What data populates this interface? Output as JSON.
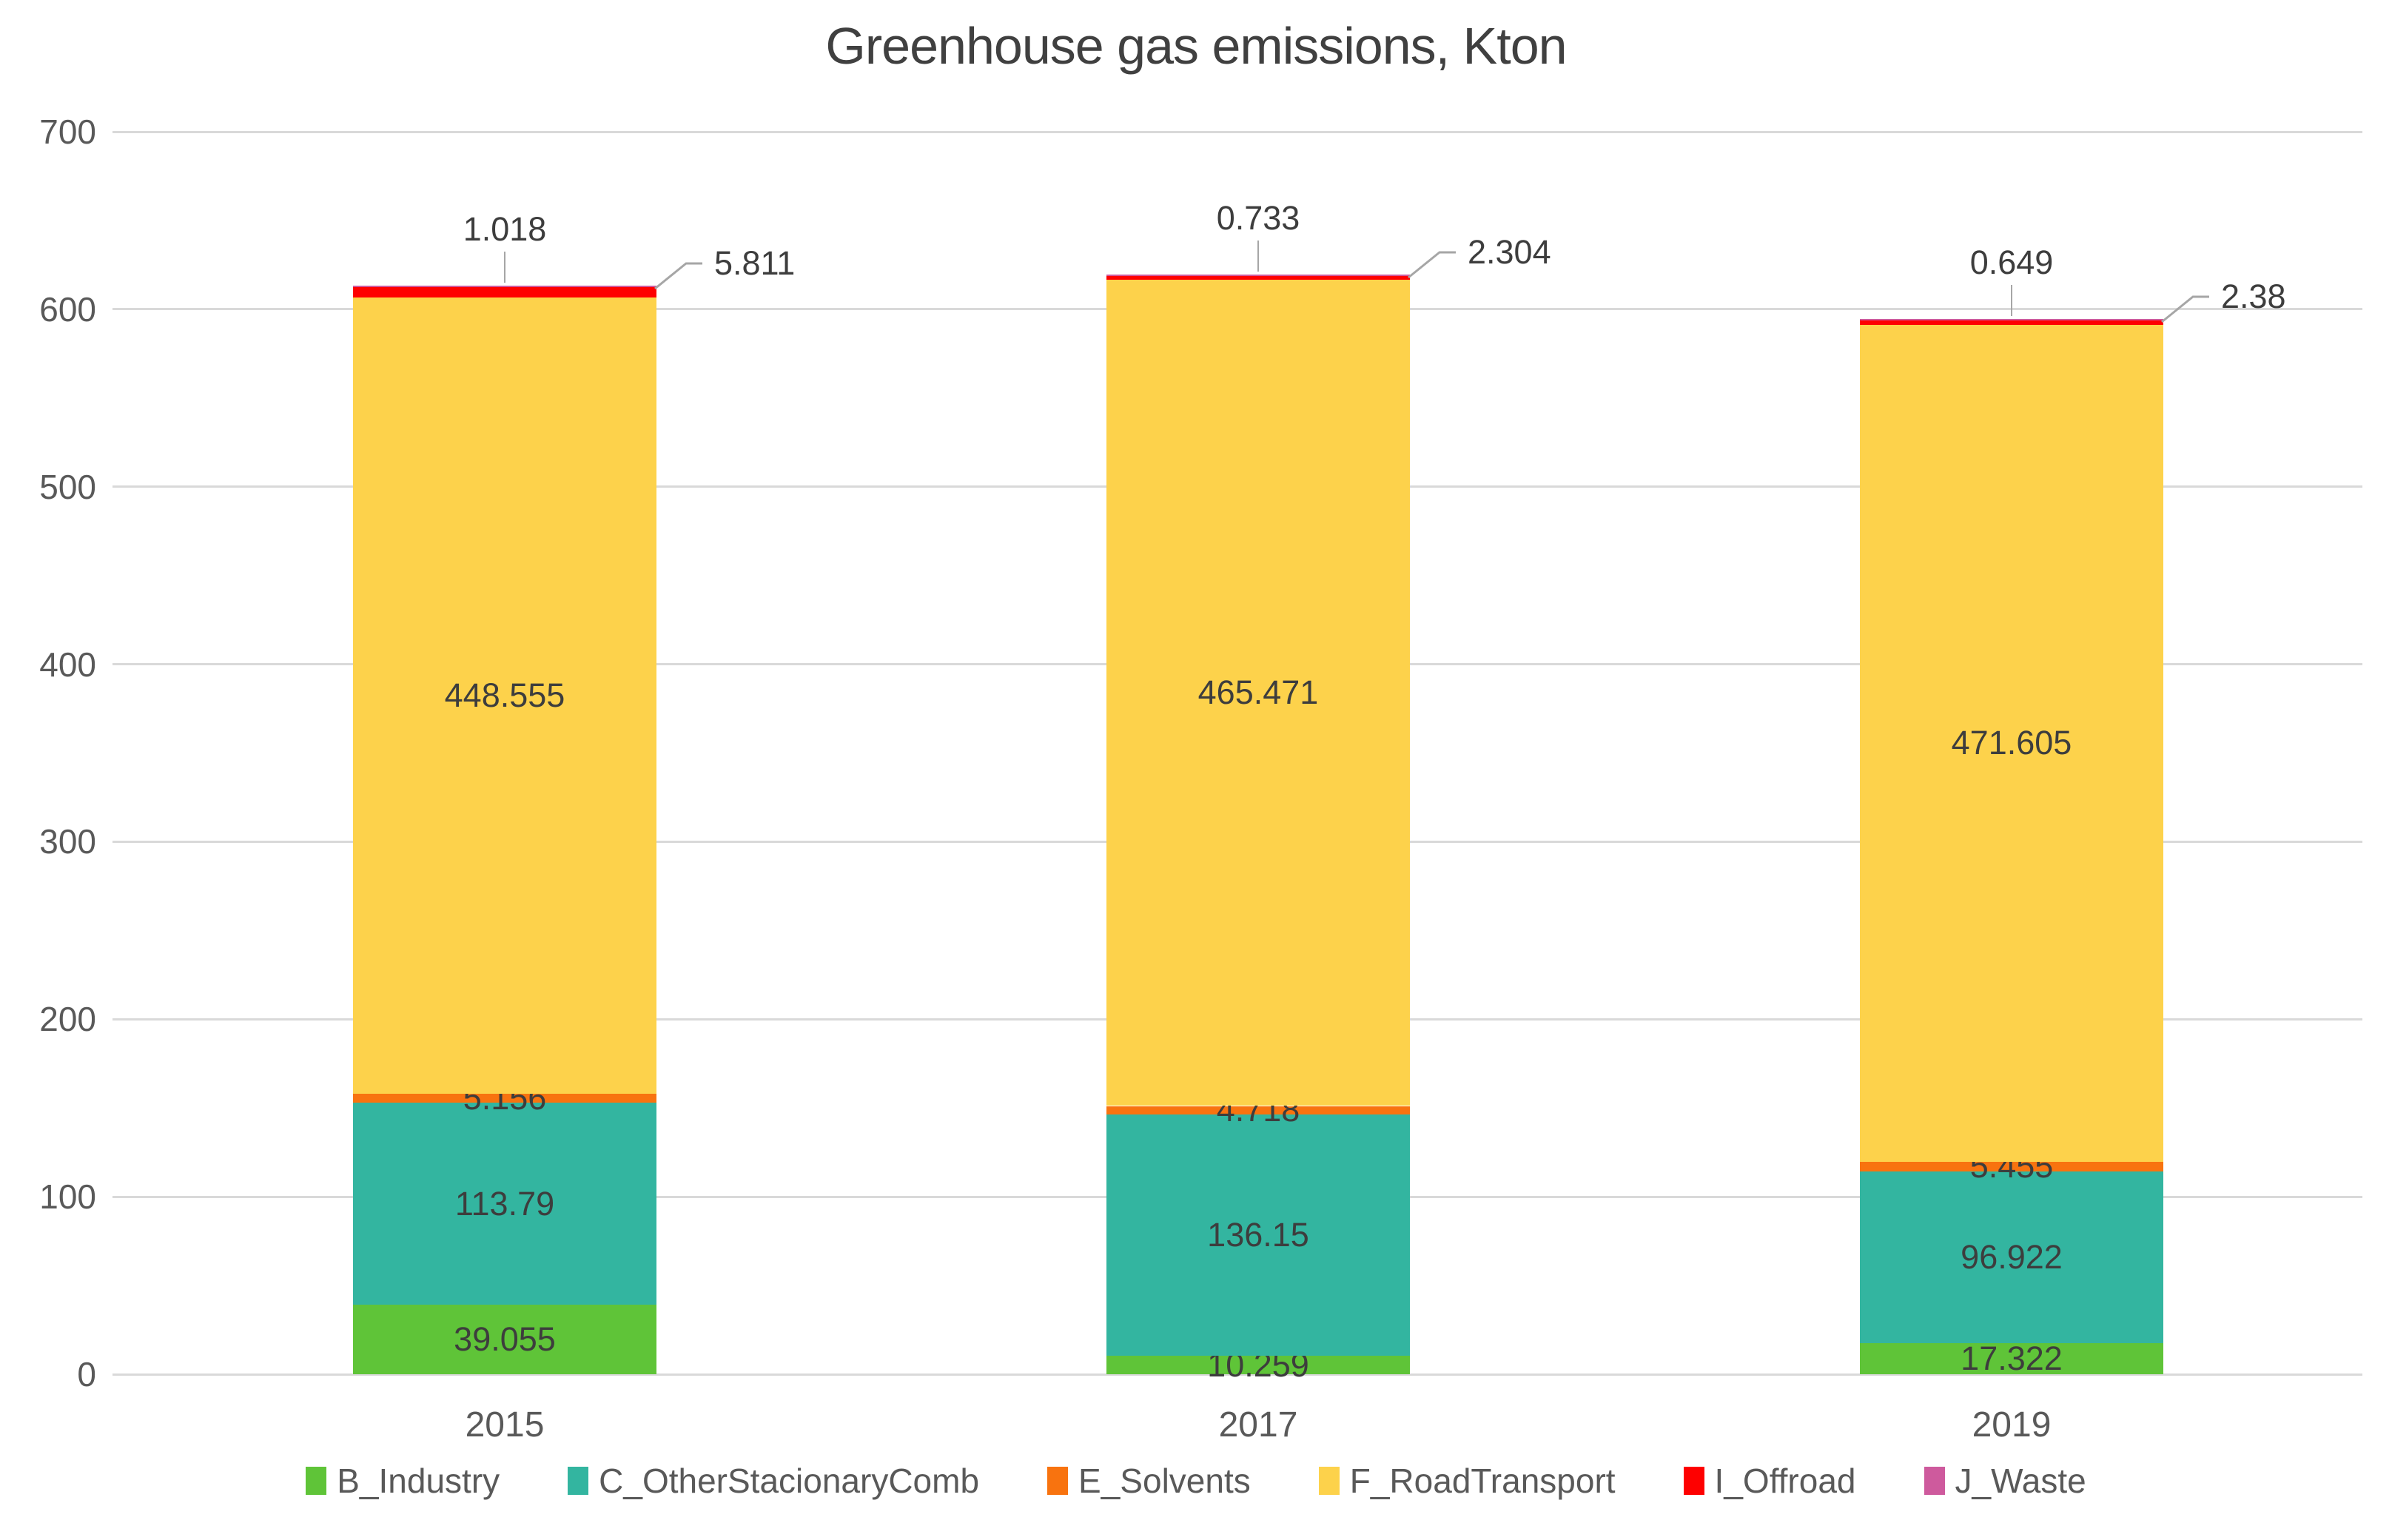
{
  "chart_data": {
    "type": "bar",
    "stacked": true,
    "title": "Greenhouse gas emissions, Kton",
    "categories": [
      "2015",
      "2017",
      "2019"
    ],
    "series": [
      {
        "name": "B_Industry",
        "color": "#5fc438",
        "values": [
          39.055,
          10.259,
          17.322
        ],
        "label_position": "inside"
      },
      {
        "name": "C_OtherStacionaryComb",
        "color": "#33b5a0",
        "values": [
          113.79,
          136.15,
          96.922
        ],
        "label_position": "inside"
      },
      {
        "name": "E_Solvents",
        "color": "#f8730f",
        "values": [
          5.156,
          4.718,
          5.455
        ],
        "label_position": "inside"
      },
      {
        "name": "F_RoadTransport",
        "color": "#fdd24b",
        "values": [
          448.555,
          465.471,
          471.605
        ],
        "label_position": "inside"
      },
      {
        "name": "I_Offroad",
        "color": "#fe0000",
        "values": [
          5.811,
          2.304,
          2.38
        ],
        "label_position": "callout-right"
      },
      {
        "name": "J_Waste",
        "color": "#ce5a9d",
        "values": [
          1.018,
          0.733,
          0.649
        ],
        "label_position": "above"
      }
    ],
    "ylim": [
      0,
      700
    ],
    "yticks": [
      0,
      100,
      200,
      300,
      400,
      500,
      600,
      700
    ],
    "grid": true,
    "legend_position": "bottom",
    "colors": {
      "grid": "#d9d9d9",
      "axis_text": "#595959",
      "data_label_text": "#3d3d3d",
      "title_text": "#404040",
      "leader_line": "#a6a6a6",
      "background": "#ffffff"
    }
  }
}
